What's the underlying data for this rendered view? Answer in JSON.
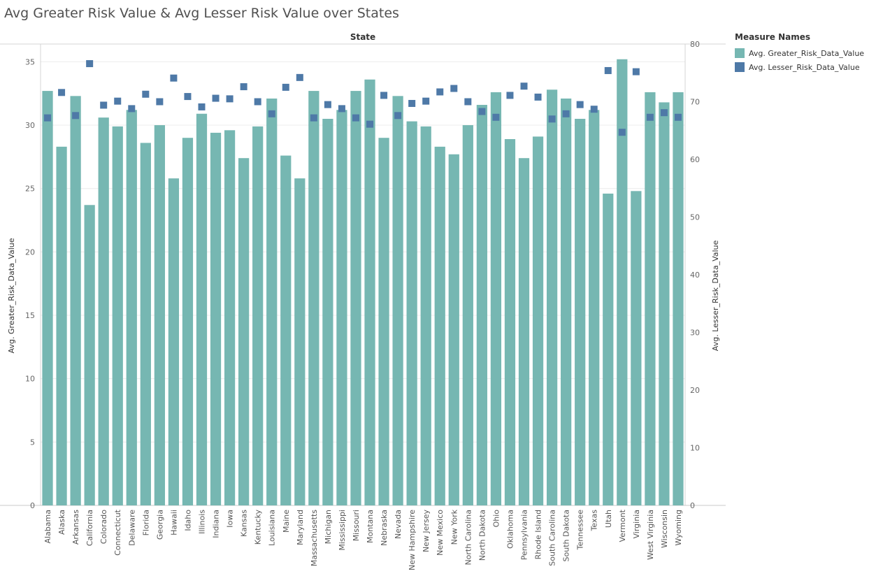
{
  "title": "Avg Greater Risk Value & Avg Lesser Risk Value over States",
  "legend": {
    "title": "Measure Names",
    "items": [
      {
        "label": "Avg. Greater_Risk_Data_Value",
        "color": "#76b7b2",
        "shape": "bar"
      },
      {
        "label": "Avg. Lesser_Risk_Data_Value",
        "color": "#4e79a7",
        "shape": "square"
      }
    ]
  },
  "chart_data": {
    "type": "bar",
    "title": "Avg Greater Risk Value & Avg Lesser Risk Value over States",
    "top_axis_label": "State",
    "ylabel": "Avg. Greater_Risk_Data_Value",
    "y2label": "Avg. Lesser_Risk_Data_Value",
    "ylim": [
      0,
      36.4
    ],
    "y2lim": [
      0,
      80
    ],
    "yticks": [
      0,
      5,
      10,
      15,
      20,
      25,
      30,
      35
    ],
    "y2ticks": [
      0,
      10,
      20,
      30,
      40,
      50,
      60,
      70,
      80
    ],
    "grid": true,
    "legend_position": "right",
    "categories": [
      "Alabama",
      "Alaska",
      "Arkansas",
      "California",
      "Colorado",
      "Connecticut",
      "Delaware",
      "Florida",
      "Georgia",
      "Hawaii",
      "Idaho",
      "Illinois",
      "Indiana",
      "Iowa",
      "Kansas",
      "Kentucky",
      "Louisiana",
      "Maine",
      "Maryland",
      "Massachusetts",
      "Michigan",
      "Mississippi",
      "Missouri",
      "Montana",
      "Nebraska",
      "Nevada",
      "New Hampshire",
      "New Jersey",
      "New Mexico",
      "New York",
      "North Carolina",
      "North Dakota",
      "Ohio",
      "Oklahoma",
      "Pennsylvania",
      "Rhode Island",
      "South Carolina",
      "South Dakota",
      "Tennessee",
      "Texas",
      "Utah",
      "Vermont",
      "Virginia",
      "West Virginia",
      "Wisconsin",
      "Wyoming"
    ],
    "series": [
      {
        "name": "Avg. Greater_Risk_Data_Value",
        "axis": "left",
        "mark": "bar",
        "color": "#76b7b2",
        "values": [
          32.7,
          28.3,
          32.3,
          23.7,
          30.6,
          29.9,
          31.2,
          28.6,
          30.0,
          25.8,
          29.0,
          30.9,
          29.4,
          29.6,
          27.4,
          29.9,
          32.1,
          27.6,
          25.8,
          32.7,
          30.5,
          31.2,
          32.7,
          33.6,
          29.0,
          32.3,
          30.3,
          29.9,
          28.3,
          27.7,
          30.0,
          31.6,
          32.6,
          28.9,
          27.4,
          29.1,
          32.8,
          32.1,
          30.5,
          31.2,
          24.6,
          35.2,
          24.8,
          32.6,
          31.8,
          32.6
        ]
      },
      {
        "name": "Avg. Lesser_Risk_Data_Value",
        "axis": "right",
        "mark": "square",
        "color": "#4e79a7",
        "values": [
          67.2,
          71.6,
          67.6,
          76.6,
          69.4,
          70.1,
          68.8,
          71.3,
          70.0,
          74.1,
          70.9,
          69.1,
          70.6,
          70.5,
          72.6,
          70.0,
          67.9,
          72.5,
          74.2,
          67.2,
          69.5,
          68.8,
          67.2,
          66.1,
          71.1,
          67.6,
          69.7,
          70.1,
          71.7,
          72.3,
          70.0,
          68.3,
          67.3,
          71.1,
          72.7,
          70.8,
          67.0,
          67.9,
          69.5,
          68.7,
          75.4,
          64.7,
          75.2,
          67.3,
          68.1,
          67.3
        ]
      }
    ]
  }
}
